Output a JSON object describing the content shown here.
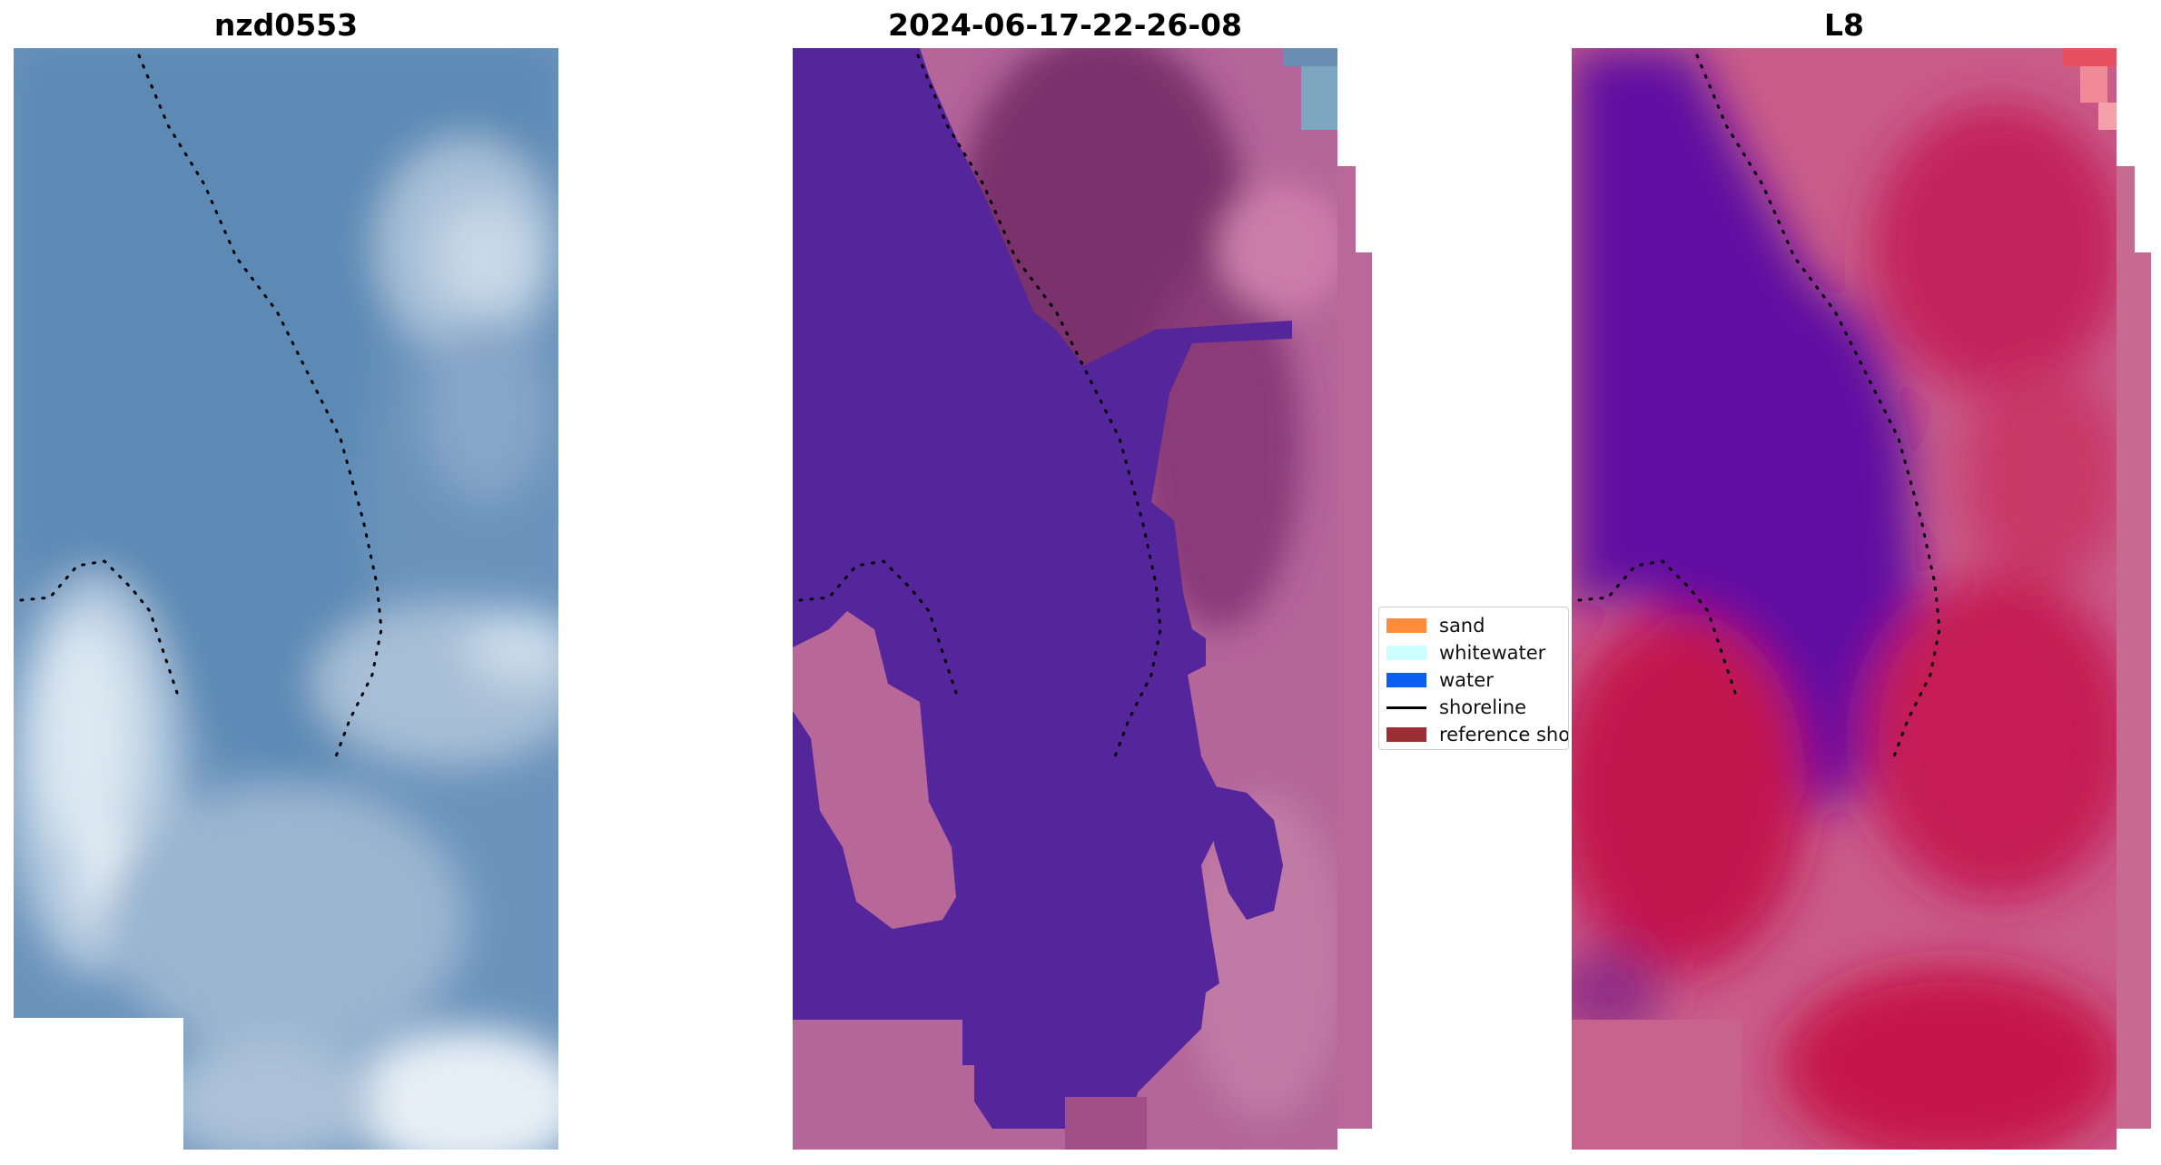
{
  "panels": [
    {
      "title": "nzd0553",
      "view": "rgb"
    },
    {
      "title": "2024-06-17-22-26-08",
      "view": "classification"
    },
    {
      "title": "L8",
      "view": "index"
    }
  ],
  "legend": {
    "items": [
      {
        "label": "sand",
        "kind": "patch",
        "color": "#ff8c3a"
      },
      {
        "label": "whitewater",
        "kind": "patch",
        "color": "#ccffff"
      },
      {
        "label": "water",
        "kind": "patch",
        "color": "#0a5ff0"
      },
      {
        "label": "shoreline",
        "kind": "line",
        "color": "#000000"
      },
      {
        "label": "reference sho",
        "kind": "patch",
        "color": "#9b2f35"
      }
    ]
  },
  "colors": {
    "water_rgb": "#5f8eb6",
    "water_class": "#55259b",
    "land_class": "#b9649a",
    "index_purple": "#5e0aa0",
    "index_red": "#c21a50",
    "index_pink": "#c9668e"
  }
}
